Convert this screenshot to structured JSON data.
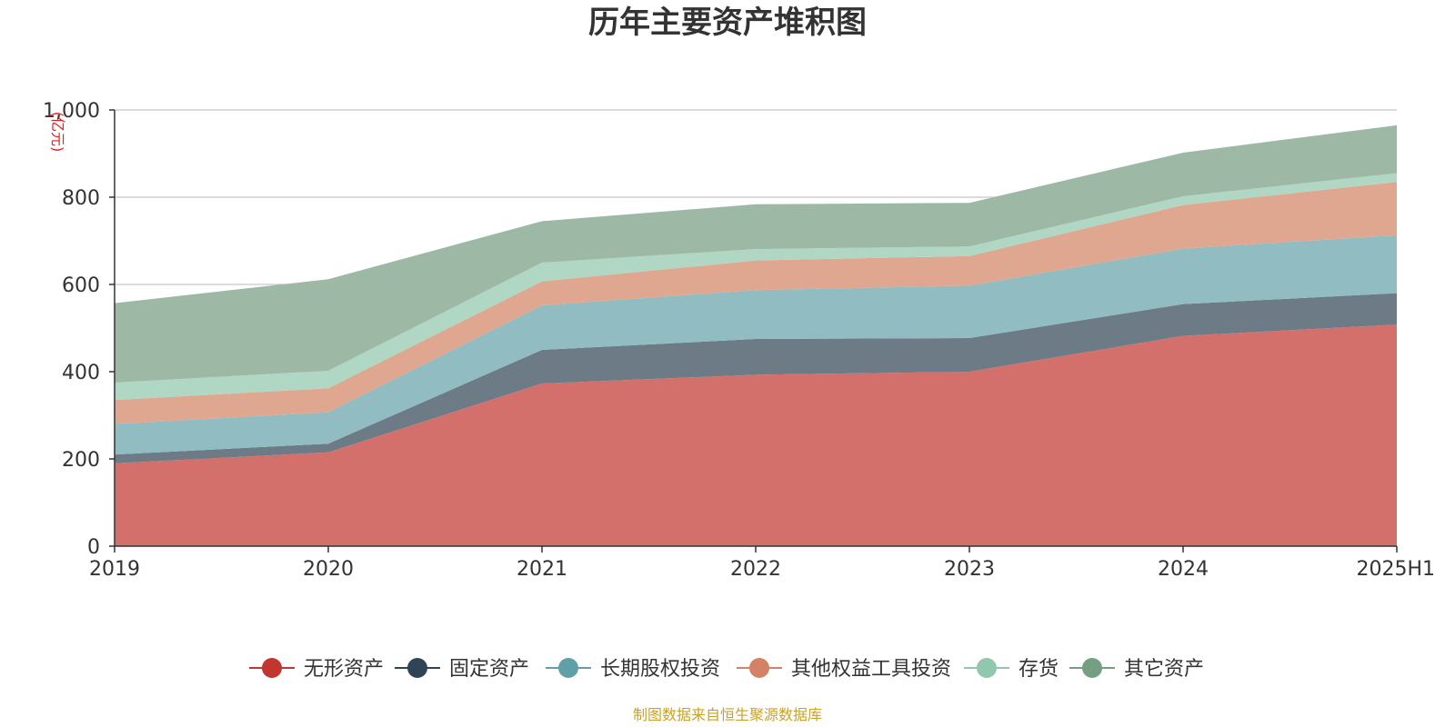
{
  "chart_data": {
    "type": "area",
    "stacked": true,
    "title": "历年主要资产堆积图",
    "ylabel": "(亿元)",
    "ylim": [
      0,
      1000
    ],
    "yticks": [
      0,
      200,
      400,
      600,
      800,
      1000
    ],
    "ytick_labels": [
      "0",
      "200",
      "400",
      "600",
      "800",
      "1,000"
    ],
    "categories": [
      "2019",
      "2020",
      "2021",
      "2022",
      "2023",
      "2024",
      "2025H1"
    ],
    "series": [
      {
        "name": "无形资产",
        "color": "#c23531",
        "fill": "#d4706c",
        "values": [
          190,
          215,
          373,
          393,
          400,
          482,
          508
        ]
      },
      {
        "name": "固定资产",
        "color": "#2f4554",
        "fill": "#6d7b86",
        "values": [
          20,
          20,
          77,
          82,
          77,
          73,
          72
        ]
      },
      {
        "name": "长期股权投资",
        "color": "#61a0a8",
        "fill": "#90bcc2",
        "values": [
          70,
          72,
          102,
          112,
          120,
          127,
          133
        ]
      },
      {
        "name": "其他权益工具投资",
        "color": "#d48265",
        "fill": "#dfa690",
        "values": [
          55,
          55,
          55,
          68,
          68,
          100,
          122
        ]
      },
      {
        "name": "存货",
        "color": "#91c7ae",
        "fill": "#b0d7c4",
        "values": [
          40,
          40,
          43,
          26,
          22,
          20,
          20
        ]
      },
      {
        "name": "其它资产",
        "color": "#749f83",
        "fill": "#9db9a6",
        "values": [
          182,
          210,
          95,
          103,
          100,
          100,
          110
        ]
      }
    ],
    "legend_position": "bottom",
    "grid": true,
    "source_note": "制图数据来自恒生聚源数据库"
  }
}
